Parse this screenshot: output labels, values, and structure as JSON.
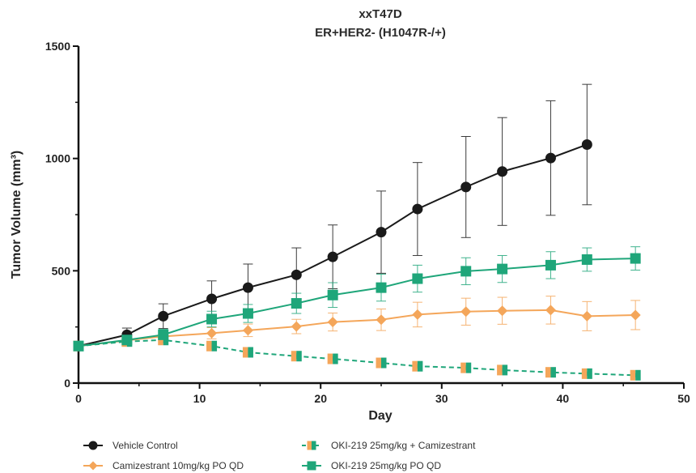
{
  "chart_data": {
    "type": "line",
    "title": "xxT47D",
    "subtitle": "ER+HER2- (H1047R-/+)",
    "xlabel": "Day",
    "ylabel": "Tumor Volume (mm³)",
    "xlim": [
      0,
      50
    ],
    "ylim": [
      0,
      1500
    ],
    "x_ticks": [
      0,
      10,
      20,
      30,
      40,
      50
    ],
    "y_ticks": [
      0,
      500,
      1000,
      1500
    ],
    "grid": false,
    "legend_position": "bottom",
    "series": [
      {
        "name": "Vehicle Control",
        "color": "#1a1a1a",
        "marker": "circle",
        "line_style": "solid",
        "x": [
          0,
          4,
          7,
          11,
          14,
          18,
          21,
          25,
          28,
          32,
          35,
          39,
          42
        ],
        "y": [
          165,
          215,
          298,
          375,
          425,
          482,
          562,
          672,
          775,
          873,
          942,
          1002,
          1062
        ],
        "error": [
          12,
          30,
          55,
          80,
          105,
          120,
          142,
          183,
          207,
          225,
          240,
          255,
          268
        ]
      },
      {
        "name": "Camizestrant 10mg/kg PO QD",
        "color": "#f4a65a",
        "marker": "diamond",
        "line_style": "solid",
        "x": [
          0,
          4,
          7,
          11,
          14,
          18,
          21,
          25,
          28,
          32,
          35,
          39,
          42,
          46
        ],
        "y": [
          165,
          190,
          208,
          222,
          235,
          252,
          272,
          282,
          305,
          318,
          322,
          325,
          298,
          303
        ],
        "error": [
          10,
          18,
          22,
          25,
          28,
          32,
          40,
          48,
          55,
          60,
          60,
          62,
          65,
          65
        ]
      },
      {
        "name": "OKI-219 25mg/kg + Camizestrant",
        "color": "#1fa67a",
        "marker": "square-half-orange",
        "line_style": "dashed",
        "x": [
          0,
          4,
          7,
          11,
          14,
          18,
          21,
          25,
          28,
          32,
          35,
          39,
          42,
          46
        ],
        "y": [
          165,
          185,
          192,
          165,
          137,
          120,
          108,
          90,
          75,
          68,
          58,
          48,
          42,
          35
        ],
        "error": [
          8,
          10,
          12,
          12,
          12,
          11,
          10,
          10,
          9,
          9,
          8,
          8,
          8,
          8
        ]
      },
      {
        "name": "OKI-219 25mg/kg PO QD",
        "color": "#1fa67a",
        "marker": "square",
        "line_style": "solid",
        "x": [
          0,
          4,
          7,
          11,
          14,
          18,
          21,
          25,
          28,
          32,
          35,
          39,
          42,
          46
        ],
        "y": [
          165,
          192,
          215,
          285,
          310,
          355,
          392,
          425,
          465,
          498,
          508,
          525,
          550,
          555
        ],
        "error": [
          10,
          18,
          25,
          35,
          40,
          45,
          55,
          60,
          60,
          60,
          60,
          60,
          52,
          52
        ]
      }
    ]
  }
}
